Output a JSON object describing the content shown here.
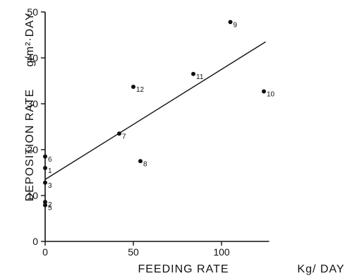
{
  "chart_data": {
    "type": "scatter",
    "title": "",
    "x_axis": {
      "label_left": "FEEDING  RATE",
      "label_right": "Kg/ DAY",
      "range": [
        0,
        127
      ],
      "ticks": [
        0,
        50,
        100
      ],
      "tick_labels": [
        "0",
        "50",
        "100"
      ]
    },
    "y_axis": {
      "label": "DEPOSITION  RATE",
      "unit": "g/m²·DAY",
      "range": [
        0,
        50
      ],
      "ticks": [
        0,
        10,
        20,
        30,
        40,
        50
      ],
      "tick_labels": [
        "0",
        "10",
        "20",
        "30",
        "40",
        "50"
      ]
    },
    "points": [
      {
        "label": "1",
        "x": 0,
        "y": 16.0
      },
      {
        "label": "2",
        "x": 0,
        "y": 8.6
      },
      {
        "label": "3",
        "x": 0,
        "y": 12.8
      },
      {
        "label": "5",
        "x": 0,
        "y": 7.9
      },
      {
        "label": "6",
        "x": 0,
        "y": 18.5
      },
      {
        "label": "7",
        "x": 42,
        "y": 23.5
      },
      {
        "label": "8",
        "x": 54,
        "y": 17.5
      },
      {
        "label": "9",
        "x": 105,
        "y": 47.8
      },
      {
        "label": "10",
        "x": 124,
        "y": 32.7
      },
      {
        "label": "11",
        "x": 84,
        "y": 36.5
      },
      {
        "label": "12",
        "x": 50,
        "y": 33.7
      }
    ],
    "regression_line": {
      "x": [
        0,
        125
      ],
      "y": [
        13.5,
        43.5
      ]
    },
    "grid": false,
    "legend": "none"
  }
}
